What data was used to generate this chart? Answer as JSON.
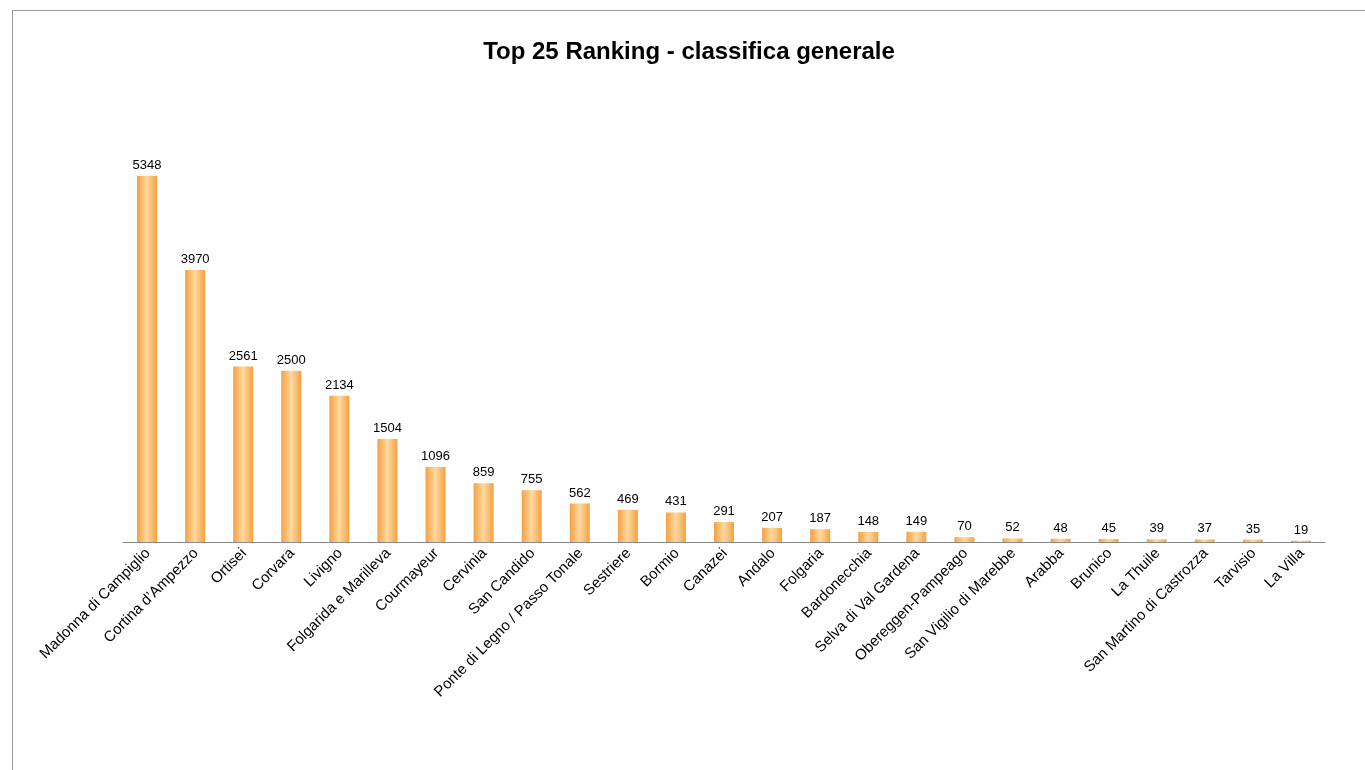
{
  "chart_data": {
    "type": "bar",
    "title": "Top 25 Ranking - classifica generale",
    "categories": [
      "Madonna di Campiglio",
      "Cortina d’Ampezzo",
      "Ortisei",
      "Corvara",
      "Livigno",
      "Folgarida e Marilleva",
      "Courmayeur",
      "Cervinia",
      "San Candido",
      "Ponte di Legno / Passo Tonale",
      "Sestriere",
      "Bormio",
      "Canazei",
      "Andalo",
      "Folgaria",
      "Bardonecchia",
      "Selva di Val Gardena",
      "Obereggen-Pampeago",
      "San Vigilio di Marebbe",
      "Arabba",
      "Brunico",
      "La Thuile",
      "San Martino di Castrozza",
      "Tarvisio",
      "La Villa"
    ],
    "values": [
      5348,
      3970,
      2561,
      2500,
      2134,
      1504,
      1096,
      859,
      755,
      562,
      469,
      431,
      291,
      207,
      187,
      148,
      149,
      70,
      52,
      48,
      45,
      39,
      37,
      35,
      19
    ],
    "color": "#f5a040",
    "data_labels": true
  }
}
